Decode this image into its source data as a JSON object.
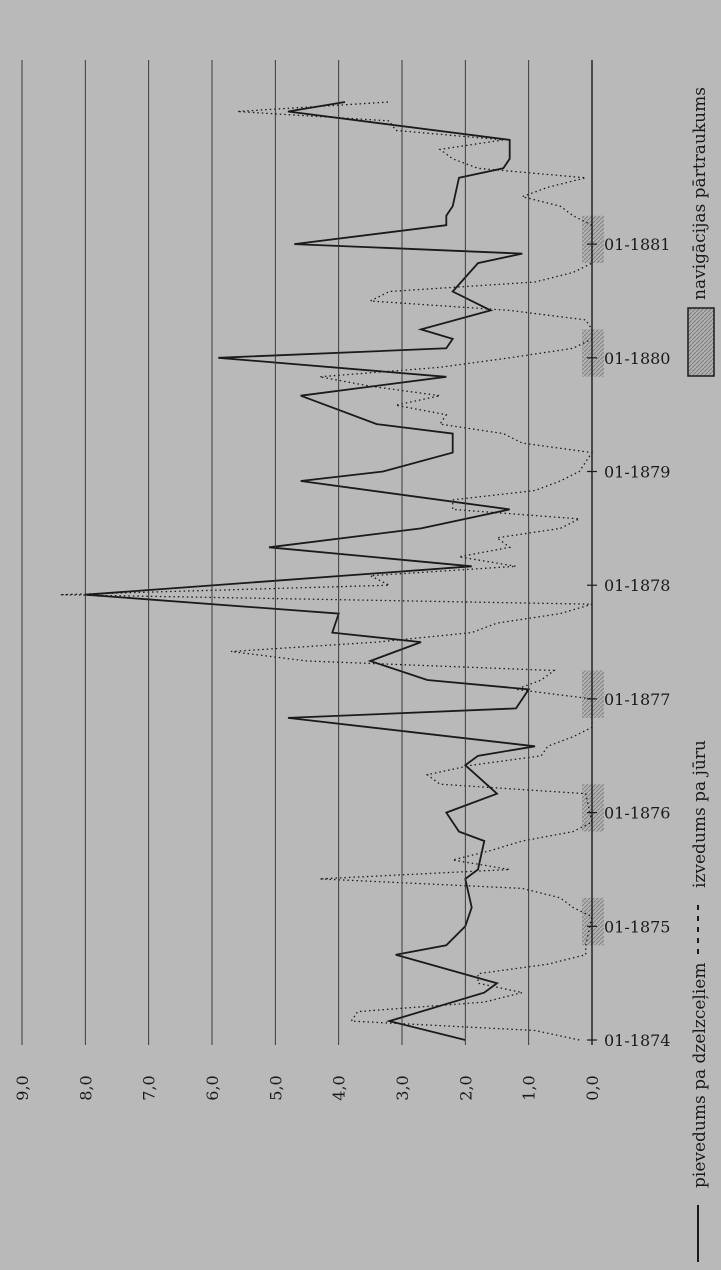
{
  "chart_data": {
    "type": "line",
    "title": "",
    "xlabel": "",
    "ylabel": "",
    "ylim": [
      0,
      9
    ],
    "y_ticks": [
      "0,0",
      "1,0",
      "2,0",
      "3,0",
      "4,0",
      "5,0",
      "6,0",
      "7,0",
      "8,0",
      "9,0"
    ],
    "x_ticks": [
      {
        "label": "01-1874",
        "t": 0
      },
      {
        "label": "01-1875",
        "t": 12
      },
      {
        "label": "01-1876",
        "t": 24
      },
      {
        "label": "01-1877",
        "t": 36
      },
      {
        "label": "01-1878",
        "t": 48
      },
      {
        "label": "01-1879",
        "t": 60
      },
      {
        "label": "01-1880",
        "t": 72
      },
      {
        "label": "01-1881",
        "t": 84
      }
    ],
    "grid": true,
    "orientation": "rotated",
    "legend": [
      {
        "label": "pievedums pa dzelzceļiem",
        "style": "solid"
      },
      {
        "label": "izvedums pa jūru",
        "style": "dotted"
      },
      {
        "label": "navigācijas pārtraukums",
        "style": "hatched-box"
      }
    ],
    "navigation_breaks": [
      {
        "t0": 10,
        "t1": 15
      },
      {
        "t0": 22,
        "t1": 27
      },
      {
        "t0": 34,
        "t1": 39
      },
      {
        "t0": 70,
        "t1": 75
      },
      {
        "t0": 82,
        "t1": 87
      }
    ],
    "series": [
      {
        "name": "pievedums pa dzelzceļiem",
        "style": "solid",
        "points": [
          [
            0,
            2.0
          ],
          [
            2,
            3.2
          ],
          [
            5,
            1.7
          ],
          [
            6,
            1.5
          ],
          [
            9,
            3.1
          ],
          [
            10,
            2.3
          ],
          [
            12,
            2.0
          ],
          [
            14,
            1.9
          ],
          [
            17,
            2.0
          ],
          [
            18,
            1.8
          ],
          [
            21,
            1.7
          ],
          [
            22,
            2.1
          ],
          [
            24,
            2.3
          ],
          [
            26,
            1.5
          ],
          [
            29,
            2.0
          ],
          [
            30,
            1.8
          ],
          [
            31,
            0.9
          ],
          [
            34,
            4.8
          ],
          [
            35,
            1.2
          ],
          [
            37,
            1.0
          ],
          [
            38,
            2.6
          ],
          [
            40,
            3.5
          ],
          [
            42,
            2.7
          ],
          [
            43,
            4.1
          ],
          [
            45,
            4.0
          ],
          [
            47,
            8.0
          ],
          [
            50,
            1.9
          ],
          [
            52,
            5.1
          ],
          [
            54,
            2.7
          ],
          [
            56,
            1.3
          ],
          [
            59,
            4.6
          ],
          [
            60,
            3.3
          ],
          [
            62,
            2.2
          ],
          [
            64,
            2.2
          ],
          [
            65,
            3.4
          ],
          [
            68,
            4.6
          ],
          [
            70,
            2.3
          ],
          [
            72,
            5.9
          ],
          [
            73,
            2.3
          ],
          [
            74,
            2.2
          ],
          [
            75,
            2.7
          ],
          [
            77,
            1.6
          ],
          [
            79,
            2.2
          ],
          [
            82,
            1.8
          ],
          [
            83,
            1.1
          ],
          [
            84,
            4.7
          ],
          [
            86,
            2.3
          ],
          [
            87,
            2.3
          ],
          [
            88,
            2.2
          ],
          [
            91,
            2.1
          ],
          [
            92,
            1.4
          ],
          [
            93,
            1.3
          ],
          [
            95,
            1.3
          ],
          [
            98,
            4.8
          ],
          [
            99,
            3.9
          ]
        ]
      },
      {
        "name": "izvedums pa jūru",
        "style": "dotted",
        "points": [
          [
            0,
            0.2
          ],
          [
            1,
            0.9
          ],
          [
            2,
            3.8
          ],
          [
            3,
            3.7
          ],
          [
            4,
            1.7
          ],
          [
            5,
            1.1
          ],
          [
            6,
            1.8
          ],
          [
            7,
            1.8
          ],
          [
            8,
            0.7
          ],
          [
            9,
            0.1
          ],
          [
            10,
            0.1
          ],
          [
            13,
            0.0
          ],
          [
            14,
            0.3
          ],
          [
            15,
            0.5
          ],
          [
            16,
            1.1
          ],
          [
            17,
            4.3
          ],
          [
            18,
            1.3
          ],
          [
            19,
            2.2
          ],
          [
            20,
            1.6
          ],
          [
            21,
            1.1
          ],
          [
            22,
            0.3
          ],
          [
            23,
            0.0
          ],
          [
            26,
            0.1
          ],
          [
            27,
            2.4
          ],
          [
            28,
            2.6
          ],
          [
            29,
            1.9
          ],
          [
            30,
            0.8
          ],
          [
            31,
            0.7
          ],
          [
            32,
            0.3
          ],
          [
            33,
            0.0
          ],
          [
            36,
            0.0
          ],
          [
            37,
            1.2
          ],
          [
            38,
            0.8
          ],
          [
            39,
            0.6
          ],
          [
            40,
            4.5
          ],
          [
            41,
            5.7
          ],
          [
            42,
            3.4
          ],
          [
            43,
            1.9
          ],
          [
            44,
            1.5
          ],
          [
            45,
            0.5
          ],
          [
            46,
            0.0
          ],
          [
            47,
            8.4
          ],
          [
            48,
            3.2
          ],
          [
            49,
            3.5
          ],
          [
            50,
            1.2
          ],
          [
            51,
            2.1
          ],
          [
            52,
            1.3
          ],
          [
            53,
            1.5
          ],
          [
            54,
            0.5
          ],
          [
            55,
            0.2
          ],
          [
            56,
            2.2
          ],
          [
            57,
            2.2
          ],
          [
            58,
            0.9
          ],
          [
            59,
            0.5
          ],
          [
            60,
            0.2
          ],
          [
            62,
            0.0
          ],
          [
            63,
            1.1
          ],
          [
            64,
            1.4
          ],
          [
            65,
            2.4
          ],
          [
            66,
            2.3
          ],
          [
            67,
            3.1
          ],
          [
            68,
            2.4
          ],
          [
            69,
            3.5
          ],
          [
            70,
            4.3
          ],
          [
            71,
            2.4
          ],
          [
            72,
            1.3
          ],
          [
            73,
            0.3
          ],
          [
            74,
            0.0
          ],
          [
            75,
            0.0
          ],
          [
            76,
            0.1
          ],
          [
            77,
            1.3
          ],
          [
            78,
            3.5
          ],
          [
            79,
            3.2
          ],
          [
            80,
            0.9
          ],
          [
            81,
            0.3
          ],
          [
            82,
            0.0
          ],
          [
            84,
            0.0
          ],
          [
            86,
            0.0
          ],
          [
            87,
            0.3
          ],
          [
            88,
            0.5
          ],
          [
            89,
            1.1
          ],
          [
            90,
            0.7
          ],
          [
            91,
            0.1
          ],
          [
            92,
            1.8
          ],
          [
            93,
            2.2
          ],
          [
            94,
            2.4
          ],
          [
            95,
            1.4
          ],
          [
            96,
            3.1
          ],
          [
            97,
            3.2
          ],
          [
            98,
            5.6
          ],
          [
            99,
            3.2
          ]
        ]
      }
    ]
  },
  "colors": {
    "page": "#b9b9b9",
    "ink": "#1a1a1a",
    "grid": "#2e2e2e",
    "hatch": "#8f8f8f"
  }
}
